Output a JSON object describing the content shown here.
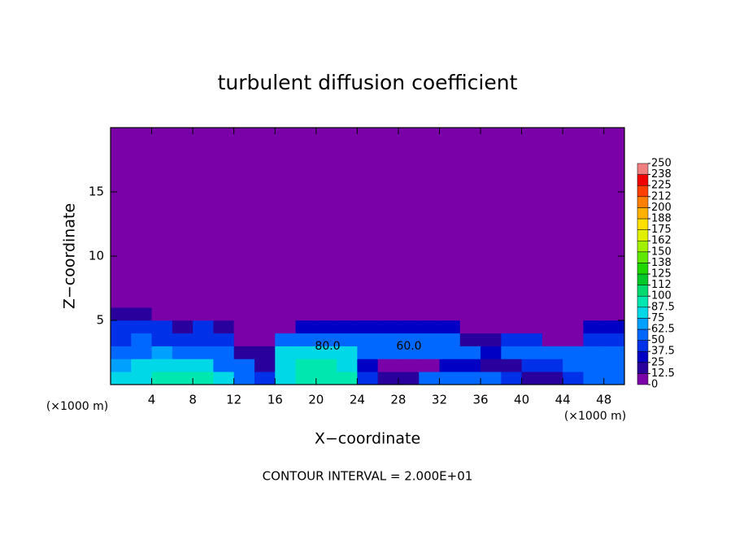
{
  "chart_data": {
    "type": "heatmap",
    "title": "turbulent diffusion coefficient",
    "xlabel": "X−coordinate",
    "ylabel": "Z−coordinate",
    "x_unit_label": "(×1000 m)",
    "footer": "CONTOUR INTERVAL = 2.000E+01",
    "annotations": [
      "80.0",
      "60.0"
    ],
    "xlim": [
      0,
      50
    ],
    "ylim": [
      0,
      20
    ],
    "xticks": [
      4,
      8,
      12,
      16,
      20,
      24,
      28,
      32,
      36,
      40,
      44,
      48
    ],
    "yticks": [
      5,
      10,
      15
    ],
    "background": "#7a00a8",
    "x_edges": [
      0,
      2,
      4,
      6,
      8,
      10,
      12,
      14,
      16,
      18,
      20,
      22,
      24,
      26,
      28,
      30,
      32,
      34,
      36,
      38,
      40,
      42,
      44,
      46,
      48,
      50
    ],
    "y_edges": [
      0,
      1,
      2,
      3,
      4,
      5,
      6,
      20
    ],
    "z": [
      [
        80,
        80,
        95,
        95,
        95,
        80,
        60,
        40,
        80,
        95,
        95,
        95,
        40,
        20,
        20,
        60,
        60,
        50,
        50,
        40,
        20,
        20,
        40,
        50,
        50
      ],
      [
        70,
        80,
        80,
        80,
        80,
        60,
        50,
        20,
        80,
        95,
        95,
        80,
        30,
        10,
        10,
        10,
        30,
        30,
        20,
        20,
        40,
        40,
        60,
        60,
        50
      ],
      [
        60,
        60,
        70,
        60,
        60,
        50,
        20,
        20,
        80,
        80,
        80,
        80,
        50,
        60,
        60,
        60,
        60,
        60,
        30,
        60,
        60,
        60,
        50,
        60,
        50
      ],
      [
        40,
        50,
        40,
        40,
        40,
        40,
        10,
        10,
        60,
        60,
        60,
        60,
        50,
        50,
        50,
        50,
        50,
        20,
        20,
        40,
        40,
        10,
        10,
        40,
        40
      ],
      [
        40,
        40,
        40,
        20,
        40,
        20,
        0,
        0,
        0,
        30,
        30,
        30,
        30,
        30,
        30,
        30,
        30,
        0,
        0,
        0,
        0,
        0,
        0,
        30,
        30
      ],
      [
        20,
        20,
        0,
        0,
        0,
        0,
        0,
        0,
        0,
        0,
        0,
        0,
        0,
        0,
        0,
        0,
        0,
        0,
        0,
        0,
        0,
        0,
        0,
        10,
        10
      ],
      [
        0,
        0,
        0,
        0,
        0,
        0,
        0,
        0,
        0,
        0,
        0,
        0,
        0,
        0,
        0,
        0,
        0,
        0,
        0,
        0,
        0,
        0,
        0,
        0,
        0
      ]
    ],
    "colorbar_ticks": [
      0,
      12.5,
      25,
      37.5,
      50,
      62.5,
      75,
      87.5,
      100,
      112,
      125,
      138,
      150,
      162,
      175,
      188,
      200,
      212,
      225,
      238,
      250
    ],
    "colorbar_colors": [
      "#7a00a8",
      "#2a009c",
      "#0000c4",
      "#0030e8",
      "#0068ff",
      "#00a0ff",
      "#00d8e8",
      "#00e8b0",
      "#00d870",
      "#00c828",
      "#20d800",
      "#60e800",
      "#a0f000",
      "#e0f000",
      "#ffe000",
      "#ffb000",
      "#ff8000",
      "#ff4000",
      "#f00000",
      "#f08080"
    ]
  }
}
